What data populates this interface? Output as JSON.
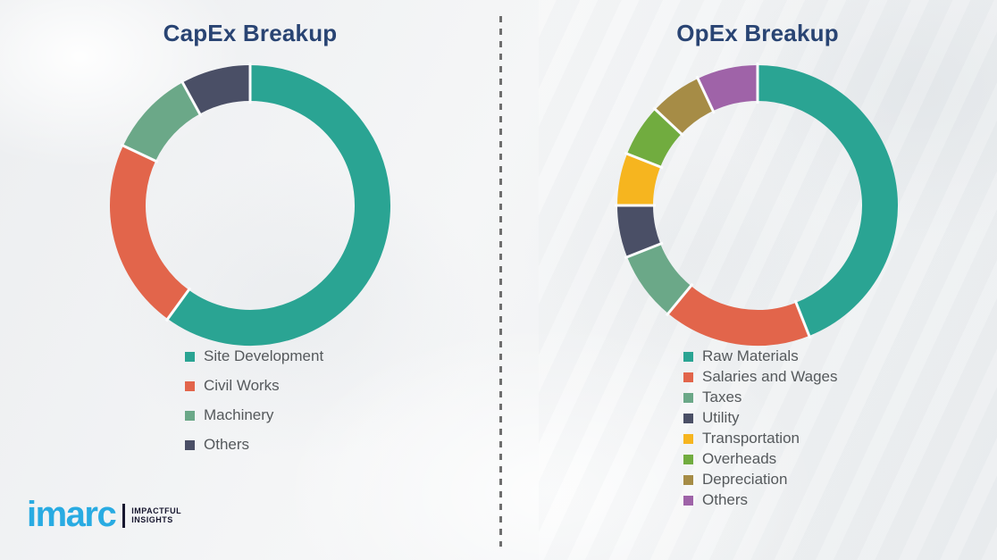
{
  "page": {
    "background_hint": "faded light-gray industrial photo backdrop",
    "title_color": "#294473",
    "legend_text_color": "#55595c"
  },
  "chart_data": [
    {
      "type": "pie",
      "variant": "donut",
      "title": "CapEx Breakup",
      "labels": [
        "Site Development",
        "Civil Works",
        "Machinery",
        "Others"
      ],
      "values": [
        60,
        22,
        10,
        8
      ],
      "colors": [
        "#2AA493",
        "#E2654B",
        "#6BA888",
        "#4A4F66"
      ],
      "values_note": "percent shares estimated from arc angles; no numeric data labels shown",
      "start_angle_deg": 0,
      "direction": "clockwise",
      "donut_hole_ratio": 0.75,
      "legend_position": "bottom"
    },
    {
      "type": "pie",
      "variant": "donut",
      "title": "OpEx Breakup",
      "labels": [
        "Raw Materials",
        "Salaries and Wages",
        "Taxes",
        "Utility",
        "Transportation",
        "Overheads",
        "Depreciation",
        "Others"
      ],
      "values": [
        44,
        17,
        8,
        6,
        6,
        6,
        6,
        7
      ],
      "colors": [
        "#2AA493",
        "#E2654B",
        "#6BA888",
        "#4A4F66",
        "#F6B51F",
        "#71AC3F",
        "#A68C46",
        "#9F63A8"
      ],
      "values_note": "percent shares estimated from arc angles; no numeric data labels shown",
      "start_angle_deg": 0,
      "direction": "clockwise",
      "donut_hole_ratio": 0.75,
      "legend_position": "bottom"
    }
  ],
  "divider": {
    "style": "vertical dashed line",
    "color": "#6e6e6e"
  },
  "logo": {
    "brand": "imarc",
    "brand_color": "#29ABE2",
    "tagline_line1": "IMPACTFUL",
    "tagline_line2": "INSIGHTS"
  }
}
